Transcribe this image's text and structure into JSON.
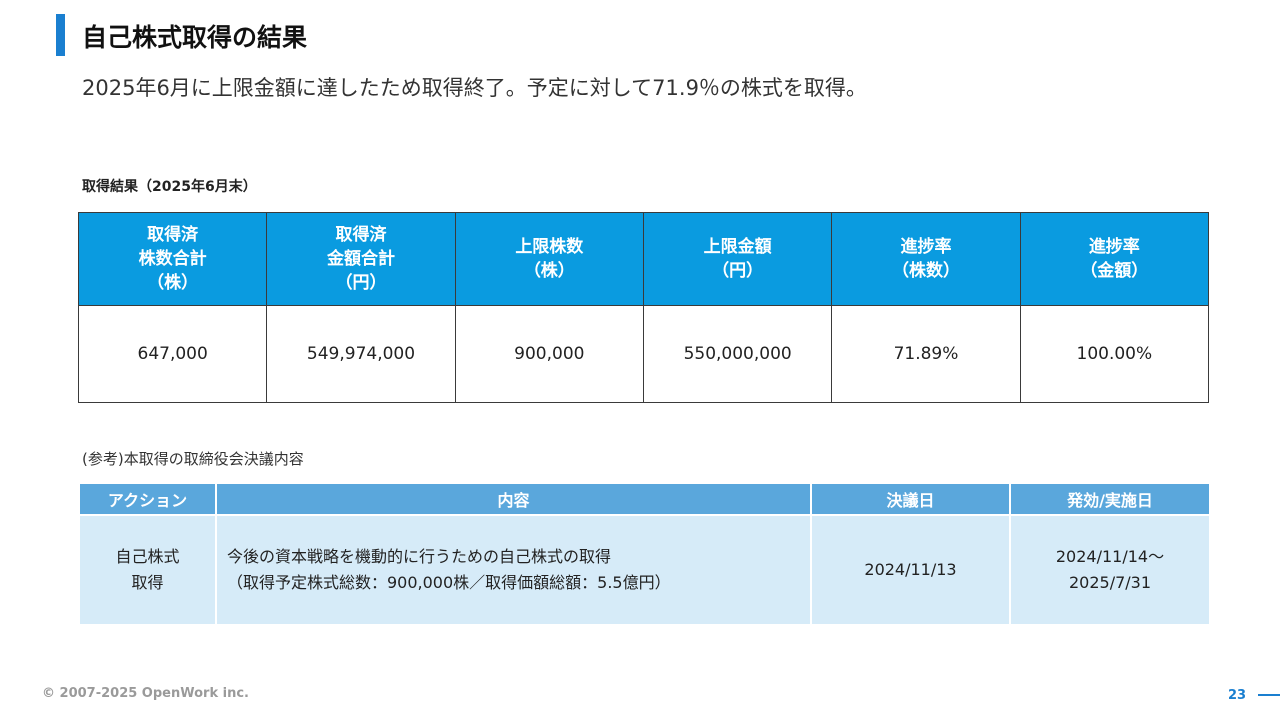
{
  "header": {
    "title": "自己株式取得の結果",
    "subtitle": "2025年6月に上限金額に達したため取得終了。予定に対して71.9％の株式を取得。"
  },
  "results": {
    "label": "取得結果（2025年6月末）",
    "headers": [
      "取得済\n株数合計\n（株）",
      "取得済\n金額合計\n（円）",
      "上限株数\n（株）",
      "上限金額\n（円）",
      "進捗率\n（株数）",
      "進捗率\n（金額）"
    ],
    "values": [
      "647,000",
      "549,974,000",
      "900,000",
      "550,000,000",
      "71.89%",
      "100.00%"
    ]
  },
  "reference": {
    "label": "(参考)本取得の取締役会決議内容",
    "headers": [
      "アクション",
      "内容",
      "決議日",
      "発効/実施日"
    ],
    "row": {
      "action_line1": "自己株式",
      "action_line2": "取得",
      "content_line1": "今後の資本戦略を機動的に行うための自己株式の取得",
      "content_line2": "（取得予定株式総数：900,000株／取得価額総額：5.5億円）",
      "resolution_date": "2024/11/13",
      "effective_line1": "2024/11/14～",
      "effective_line2": "2025/7/31"
    }
  },
  "footer": {
    "copyright": "© 2007-2025 OpenWork inc.",
    "page_number": "23"
  },
  "colors": {
    "accent": "#1a7fd0",
    "results_header": "#0a9be0",
    "reference_header": "#5aa7dc",
    "reference_cell": "#d6ebf8"
  }
}
